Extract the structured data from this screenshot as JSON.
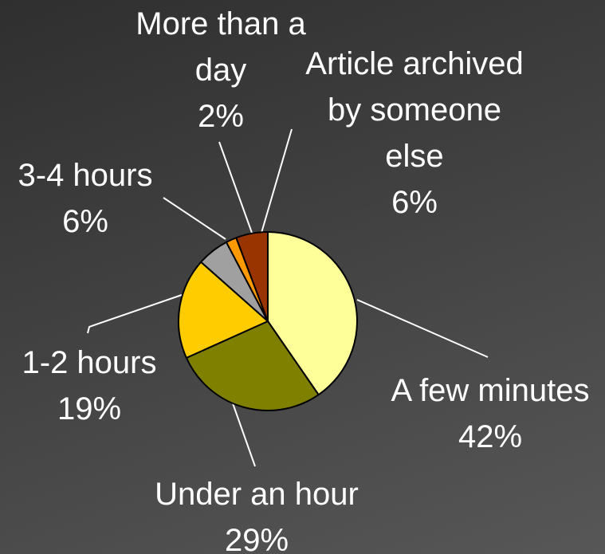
{
  "chart_data": {
    "type": "pie",
    "categories": [
      "A few minutes",
      "Under an hour",
      "1-2 hours",
      "3-4 hours",
      "More than a day",
      "Article archived by someone else"
    ],
    "values": [
      42,
      29,
      19,
      6,
      2,
      6
    ],
    "value_labels": [
      "42%",
      "29%",
      "19%",
      "6%",
      "2%",
      "6%"
    ],
    "colors": [
      "#ffff99",
      "#808000",
      "#ffcc00",
      "#a0a0a0",
      "#ff9900",
      "#993300"
    ]
  }
}
